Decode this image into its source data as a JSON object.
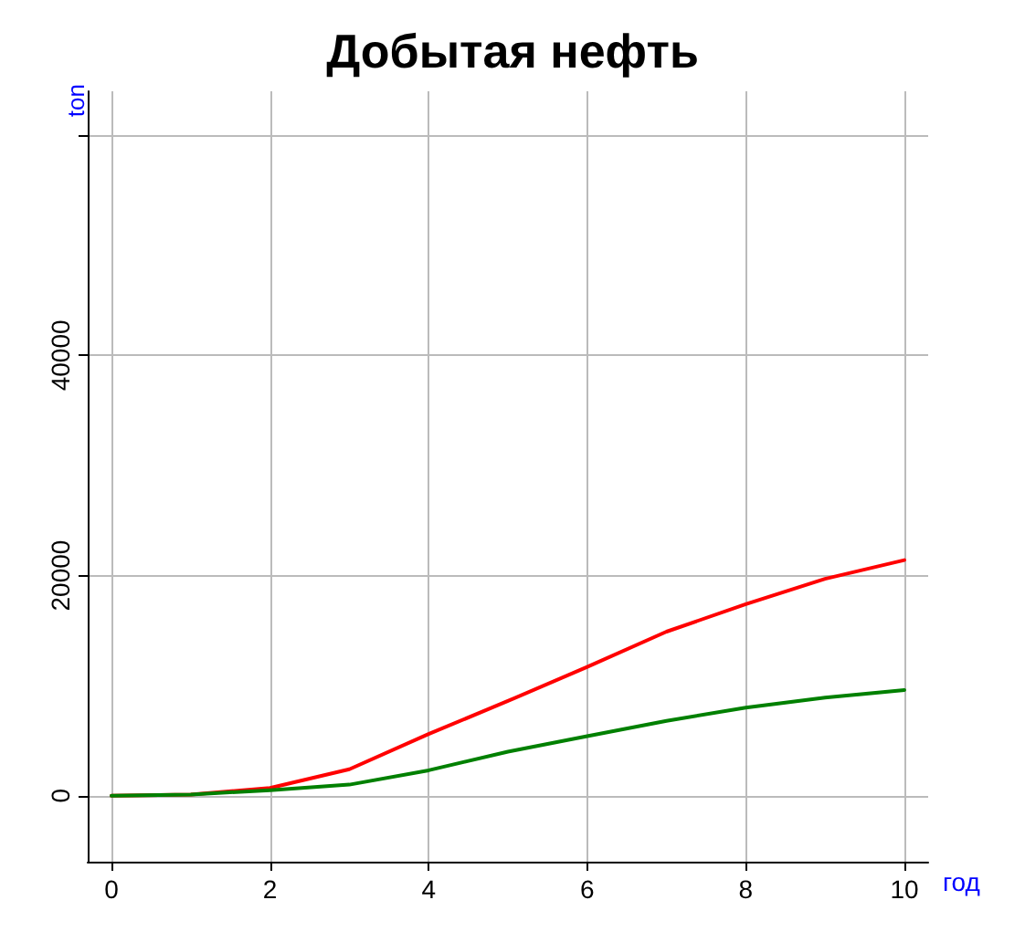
{
  "chart_data": {
    "type": "line",
    "title": "Добытая нефть",
    "xlabel": "год",
    "ylabel": "ton",
    "x": [
      0,
      1,
      2,
      3,
      4,
      5,
      6,
      7,
      8,
      9,
      10
    ],
    "series": [
      {
        "color": "#ff0000",
        "values": [
          0,
          100,
          700,
          2400,
          5600,
          8600,
          11700,
          14900,
          17400,
          19700,
          21400
        ]
      },
      {
        "color": "#008000",
        "values": [
          0,
          100,
          500,
          1000,
          2300,
          4000,
          5400,
          6800,
          8000,
          8900,
          9600
        ]
      }
    ],
    "xlim": [
      -0.3,
      10.3
    ],
    "xticks": [
      0,
      2,
      4,
      6,
      8,
      10
    ],
    "ylim": [
      -6000,
      64000
    ],
    "yticks": [
      0,
      20000,
      40000,
      {
        "value": 60000,
        "label": null
      }
    ],
    "grid": true,
    "marker": "none",
    "line_style": "solid"
  }
}
